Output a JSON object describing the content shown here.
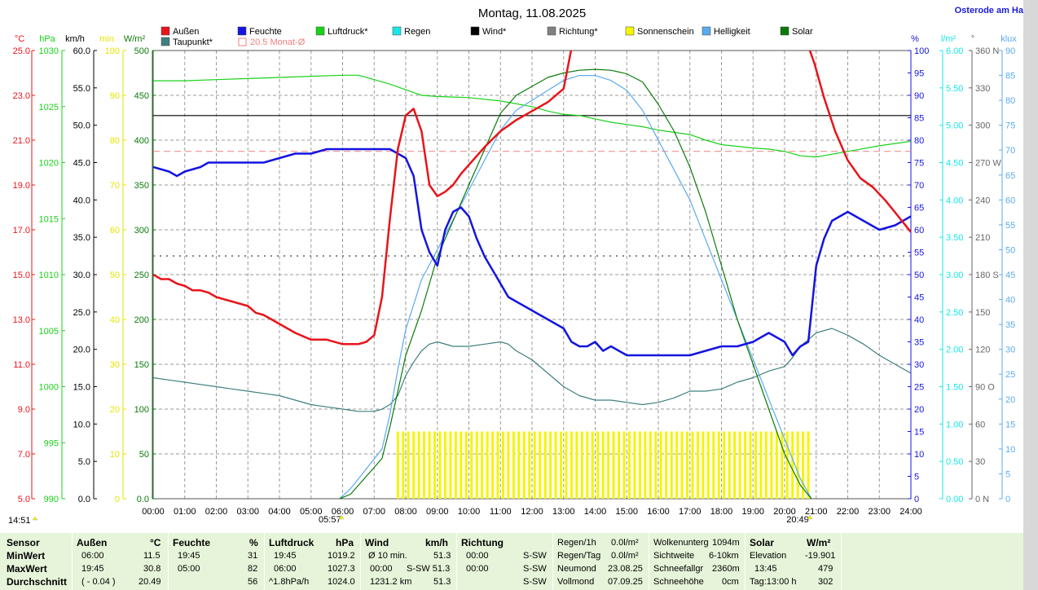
{
  "title": "Montag, 11.08.2025",
  "location": "Osterode am Ha",
  "legend": {
    "row1": [
      "Außen",
      "Feuchte",
      "Luftdruck*",
      "Regen",
      "Wind*",
      "Richtung*",
      "Sonnenschein",
      "Helligkeit",
      "Solar"
    ],
    "row2": [
      "Taupunkt*",
      "20.5 Monat-Ø"
    ]
  },
  "colors": {
    "aussen": "#e8141a",
    "feuchte": "#1414e0",
    "luftdruck": "#19d219",
    "regen": "#19e6e6",
    "wind": "#000000",
    "richtung": "#808080",
    "sonnenschein": "#f5f500",
    "helligkeit": "#5aaaf0",
    "solar": "#0b7a0b",
    "taupunkt": "#3f7f7f",
    "monat": "#f08080"
  },
  "axes": {
    "temp": {
      "unit": "°C",
      "ticks": [
        "25.0",
        "23.0",
        "21.0",
        "19.0",
        "17.0",
        "15.0",
        "13.0",
        "11.0",
        "9.0",
        "7.0",
        "5.0"
      ]
    },
    "press": {
      "unit": "hPa",
      "ticks": [
        "1030",
        "1025",
        "1020",
        "1015",
        "1010",
        "1005",
        "1000",
        "995",
        "990"
      ]
    },
    "wind": {
      "unit": "km/h",
      "ticks": [
        "60.0",
        "55.0",
        "50.0",
        "45.0",
        "40.0",
        "35.0",
        "30.0",
        "25.0",
        "20.0",
        "15.0",
        "10.0",
        "5.0",
        "0.0"
      ]
    },
    "sun": {
      "unit": "min",
      "ticks": [
        "100",
        "90",
        "80",
        "70",
        "60",
        "50",
        "40",
        "30",
        "20",
        "10",
        "0"
      ]
    },
    "solar": {
      "unit": "W/m²",
      "ticks": [
        "500",
        "450",
        "400",
        "350",
        "300",
        "250",
        "200",
        "150",
        "100",
        "50",
        "0.0"
      ]
    },
    "hum": {
      "unit": "%",
      "ticks": [
        "100",
        "95",
        "90",
        "85",
        "80",
        "75",
        "70",
        "65",
        "60",
        "55",
        "50",
        "45",
        "40",
        "35",
        "30",
        "25",
        "20",
        "15",
        "10",
        "5",
        "0"
      ]
    },
    "rain": {
      "unit": "l/m²",
      "ticks": [
        "6.00",
        "5.50",
        "5.00",
        "4.50",
        "4.00",
        "3.50",
        "3.00",
        "2.50",
        "2.00",
        "1.50",
        "1.00",
        "0.50",
        "0.00"
      ]
    },
    "dir": {
      "unit": "°",
      "ticks": [
        "360 N",
        "330",
        "300",
        "270 W",
        "240",
        "210",
        "180 S",
        "150",
        "120",
        "90 O",
        "60",
        "30",
        "0 N"
      ]
    },
    "lux": {
      "unit": "klux",
      "ticks": [
        "90",
        "85",
        "80",
        "75",
        "70",
        "65",
        "60",
        "55",
        "50",
        "45",
        "40",
        "35",
        "30",
        "25",
        "20",
        "15",
        "10",
        "5",
        "0"
      ]
    },
    "time": [
      "00:00",
      "01:00",
      "02:00",
      "03:00",
      "04:00",
      "05:00",
      "06:00",
      "07:00",
      "08:00",
      "09:00",
      "10:00",
      "11:00",
      "12:00",
      "13:00",
      "14:00",
      "15:00",
      "16:00",
      "17:00",
      "18:00",
      "19:00",
      "20:00",
      "21:00",
      "22:00",
      "23:00",
      "24:00"
    ]
  },
  "labels": {
    "current_time": "14:51",
    "sunrise": "05:57",
    "sunset": "20:49"
  },
  "chart_data": {
    "type": "line",
    "x_unit": "hours",
    "xlim": [
      0,
      24
    ],
    "series": [
      {
        "name": "Außen",
        "unit": "°C",
        "x": [
          0,
          0.25,
          0.5,
          0.75,
          1,
          1.25,
          1.5,
          1.75,
          2,
          2.25,
          2.5,
          3,
          3.25,
          3.5,
          4,
          4.5,
          5,
          5.5,
          6,
          6.25,
          6.5,
          6.75,
          7,
          7.25,
          7.5,
          7.75,
          8,
          8.25,
          8.5,
          8.75,
          9,
          9.25,
          9.5,
          9.75,
          10,
          10.5,
          11,
          11.5,
          12,
          12.5,
          13,
          13.25
        ],
        "values": [
          15.0,
          14.8,
          14.8,
          14.6,
          14.5,
          14.3,
          14.3,
          14.2,
          14.0,
          13.9,
          13.8,
          13.6,
          13.3,
          13.2,
          12.8,
          12.4,
          12.1,
          12.1,
          11.9,
          11.9,
          11.9,
          12.0,
          12.3,
          14.0,
          17.5,
          20.6,
          22.1,
          22.4,
          21.4,
          19.0,
          18.5,
          18.7,
          19.0,
          19.5,
          19.9,
          20.7,
          21.4,
          21.9,
          22.3,
          22.7,
          23.3,
          25.1
        ]
      },
      {
        "name": "Außen (Abend)",
        "unit": "°C",
        "x": [
          20.8,
          20.95,
          21.25,
          21.6,
          22.0,
          22.4,
          22.8,
          23.2,
          23.6,
          24.0
        ],
        "values": [
          25.0,
          24.4,
          22.9,
          21.4,
          20.1,
          19.3,
          18.9,
          18.3,
          17.6,
          16.9
        ]
      },
      {
        "name": "Feuchte",
        "unit": "%",
        "x": [
          0,
          0.5,
          0.75,
          1,
          1.5,
          1.75,
          2,
          2.5,
          3,
          3.5,
          4,
          4.5,
          5,
          5.5,
          6,
          6.5,
          7,
          7.5,
          7.75,
          8,
          8.25,
          8.5,
          8.75,
          9,
          9.25,
          9.5,
          9.75,
          10,
          10.25,
          10.5,
          11,
          11.25,
          11.5,
          12,
          12.5,
          13,
          13.25,
          13.5,
          13.75,
          14,
          14.25,
          14.5,
          15,
          16,
          17,
          17.5,
          18,
          18.5,
          19,
          19.25,
          19.5,
          19.75,
          20,
          20.25,
          20.5,
          20.75,
          21,
          21.25,
          21.5,
          22,
          22.5,
          23,
          23.5,
          24
        ],
        "values": [
          74,
          73,
          72,
          73,
          74,
          75,
          75,
          75,
          75,
          75,
          76,
          77,
          77,
          78,
          78,
          78,
          78,
          78,
          77,
          76,
          72,
          60,
          55,
          52,
          60,
          64,
          65,
          63,
          58,
          54,
          48,
          45,
          44,
          42,
          40,
          38,
          35,
          34,
          34,
          35,
          33,
          34,
          32,
          32,
          32,
          33,
          34,
          34,
          35,
          36,
          37,
          36,
          35,
          32,
          34,
          35,
          52,
          58,
          62,
          64,
          62,
          60,
          61,
          63
        ]
      },
      {
        "name": "Luftdruck",
        "unit": "hPa",
        "x": [
          0,
          1,
          2,
          3,
          4,
          5,
          6,
          6.5,
          7,
          7.5,
          8,
          8.5,
          9,
          10,
          11,
          12,
          12.5,
          13,
          13.5,
          14,
          14.5,
          15,
          15.5,
          16,
          17,
          17.5,
          18,
          19,
          19.5,
          20,
          20.5,
          21,
          22,
          23,
          24
        ],
        "values": [
          1027.3,
          1027.3,
          1027.4,
          1027.5,
          1027.6,
          1027.7,
          1027.8,
          1027.8,
          1027.4,
          1027.0,
          1026.5,
          1026.0,
          1025.9,
          1025.8,
          1025.5,
          1025.0,
          1024.6,
          1024.3,
          1024.2,
          1023.9,
          1023.6,
          1023.4,
          1023.2,
          1022.9,
          1022.5,
          1022.0,
          1021.6,
          1021.3,
          1021.2,
          1021.0,
          1020.6,
          1020.5,
          1021.0,
          1021.5,
          1021.9
        ]
      },
      {
        "name": "Taupunkt",
        "unit": "°C",
        "x": [
          0,
          0.5,
          1,
          1.5,
          2,
          2.5,
          3,
          3.5,
          4,
          4.5,
          5,
          5.5,
          6,
          6.5,
          7,
          7.25,
          7.5,
          7.75,
          8,
          8.25,
          8.5,
          8.75,
          9,
          9.5,
          10,
          10.5,
          11,
          11.25,
          11.5,
          12,
          12.5,
          13,
          13.5,
          14,
          14.5,
          15,
          15.5,
          16,
          16.5,
          17,
          17.5,
          18,
          18.5,
          19,
          19.5,
          20,
          20.25,
          20.5,
          20.75,
          21,
          21.5,
          22,
          22.5,
          23,
          23.5,
          24
        ],
        "values": [
          10.4,
          10.3,
          10.2,
          10.1,
          10.0,
          9.9,
          9.8,
          9.7,
          9.6,
          9.4,
          9.2,
          9.1,
          9.0,
          8.9,
          8.9,
          9.0,
          9.2,
          9.6,
          10.5,
          11.1,
          11.6,
          11.9,
          12.0,
          11.8,
          11.8,
          11.9,
          12.0,
          11.9,
          11.6,
          11.2,
          10.6,
          10.0,
          9.6,
          9.4,
          9.4,
          9.3,
          9.2,
          9.3,
          9.5,
          9.8,
          9.8,
          9.9,
          10.2,
          10.4,
          10.7,
          10.9,
          11.3,
          11.8,
          12.1,
          12.4,
          12.6,
          12.3,
          11.9,
          11.4,
          11.0,
          10.6
        ]
      },
      {
        "name": "Solar",
        "unit": "W/m²",
        "x": [
          5.9,
          6.25,
          6.5,
          6.75,
          7,
          7.25,
          7.5,
          7.75,
          8,
          8.5,
          9,
          9.5,
          10,
          10.5,
          11,
          11.5,
          12,
          12.5,
          13,
          13.5,
          14,
          14.5,
          15,
          15.5,
          16,
          16.5,
          17,
          17.5,
          18,
          18.5,
          19,
          19.5,
          20,
          20.5,
          20.85
        ],
        "values": [
          0,
          5,
          15,
          25,
          35,
          45,
          80,
          120,
          160,
          210,
          270,
          310,
          350,
          390,
          430,
          450,
          460,
          470,
          475,
          478,
          479,
          478,
          474,
          465,
          440,
          410,
          370,
          320,
          260,
          200,
          150,
          100,
          50,
          15,
          0
        ]
      },
      {
        "name": "Helligkeit",
        "unit": "klux",
        "x": [
          5.9,
          6.25,
          6.5,
          6.75,
          7,
          7.25,
          7.5,
          7.75,
          8,
          8.5,
          9,
          9.5,
          10,
          10.5,
          11,
          11.5,
          12,
          12.5,
          13,
          13.5,
          14,
          14.5,
          15,
          15.5,
          16,
          16.5,
          17,
          17.5,
          18,
          18.5,
          19,
          19.5,
          20,
          20.5,
          20.85
        ],
        "values": [
          0,
          2,
          4,
          6,
          8,
          10,
          17,
          26,
          34,
          44,
          50,
          56,
          62,
          68,
          74,
          78,
          80,
          82,
          84,
          85,
          85,
          84,
          82,
          78,
          72,
          66,
          60,
          52,
          44,
          36,
          28,
          20,
          12,
          4,
          0
        ]
      },
      {
        "name": "Wind",
        "unit": "km/h",
        "x": [
          0,
          24
        ],
        "values": [
          51.3,
          51.3
        ]
      },
      {
        "name": "Richtung",
        "unit": "°",
        "x": [
          0,
          24
        ],
        "values": [
          195,
          195
        ]
      },
      {
        "name": "20.5 Monat-Ø",
        "unit": "°C",
        "x": [
          0,
          24
        ],
        "values": [
          20.5,
          20.5
        ]
      }
    ],
    "sunshine": {
      "unit": "min",
      "from": "07:45",
      "to": "20:45",
      "value": 15
    }
  },
  "table": {
    "headers": [
      [
        "Sensor",
        ""
      ],
      [
        "Außen",
        "°C"
      ],
      [
        "Feuchte",
        "%"
      ],
      [
        "Luftdruck",
        "hPa"
      ],
      [
        "Wind",
        "km/h"
      ],
      [
        "Richtung",
        ""
      ]
    ],
    "rows": [
      {
        "label": "MinWert",
        "cells": [
          "06:00",
          "11.5",
          "19:45",
          "31",
          "19:45",
          "1019.2",
          "Ø 10 min.",
          "51.3",
          "00:00",
          "S-SW"
        ]
      },
      {
        "label": "MaxWert",
        "cells": [
          "19:45",
          "30.8",
          "05:00",
          "82",
          "06:00",
          "1027.3",
          "00:00",
          "S-SW 51.3",
          "00:00",
          "S-SW"
        ]
      },
      {
        "label": "Durchschnitt",
        "cells": [
          "( - 0.04 )",
          "20.49",
          "",
          "56",
          "^1.8hPa/h",
          "1024.0",
          "1231.2 km",
          "51.3",
          "",
          "S-SW"
        ]
      }
    ],
    "extra1": [
      [
        "Regen/1h",
        "0.0l/m²"
      ],
      [
        "Regen/Tag",
        "0.0l/m²"
      ],
      [
        "Neumond",
        "23.08.25"
      ],
      [
        "Vollmond",
        "07.09.25"
      ]
    ],
    "extra2": [
      [
        "Wolkenunterg",
        "1094m"
      ],
      [
        "Sichtweite",
        "6-10km"
      ],
      [
        "Schneefallgr",
        "2360m"
      ],
      [
        "Schneehöhe",
        "0cm"
      ]
    ],
    "solar": {
      "header": "Solar",
      "unit": "W/m²",
      "rows": [
        [
          "Elevation",
          "-19.901"
        ],
        [
          "13:45",
          "479"
        ],
        [
          "Tag:13:00 h",
          "302"
        ]
      ]
    }
  }
}
